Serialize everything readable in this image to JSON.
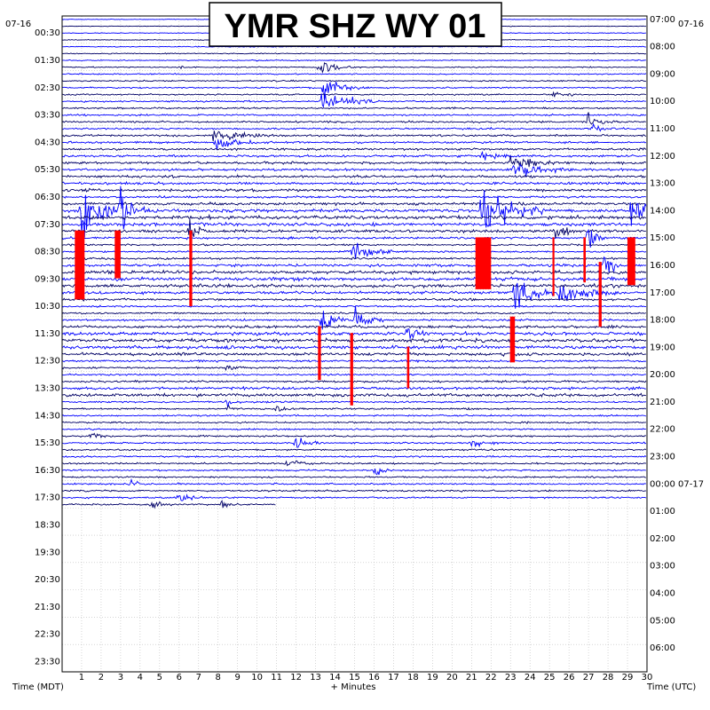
{
  "chart_data": {
    "type": "helicorder",
    "title": "YMR SHZ WY 01",
    "left_axis_label": "Time (MDT)",
    "right_axis_label": "Time (UTC)",
    "x_axis_label": "+ Minutes",
    "left_date": "07-16",
    "right_date": "07-16",
    "x_ticks": [
      "1",
      "2",
      "3",
      "4",
      "5",
      "6",
      "7",
      "8",
      "9",
      "10",
      "11",
      "12",
      "13",
      "14",
      "15",
      "16",
      "17",
      "18",
      "19",
      "20",
      "21",
      "22",
      "23",
      "24",
      "25",
      "26",
      "27",
      "28",
      "29",
      "30"
    ],
    "xlim": [
      0,
      30
    ],
    "row_minutes": 15,
    "row_count": 96,
    "rows_with_data": 72,
    "left_time_labels": [
      "00:30",
      "01:30",
      "02:30",
      "03:30",
      "04:30",
      "05:30",
      "06:30",
      "07:30",
      "08:30",
      "09:30",
      "10:30",
      "11:30",
      "12:30",
      "13:30",
      "14:30",
      "15:30",
      "16:30",
      "17:30",
      "18:30",
      "19:30",
      "20:30",
      "21:30",
      "22:30",
      "23:30"
    ],
    "right_time_labels": [
      "07:00",
      "08:00",
      "09:00",
      "10:00",
      "11:00",
      "12:00",
      "13:00",
      "14:00",
      "15:00",
      "16:00",
      "17:00",
      "18:00",
      "19:00",
      "20:00",
      "21:00",
      "22:00",
      "23:00",
      "00:00 07-17",
      "01:00",
      "02:00",
      "03:00",
      "04:00",
      "05:00",
      "06:00"
    ],
    "trace_colors": [
      "#0000ff",
      "#000066"
    ],
    "clip_color": "#ff0000",
    "grid": "dotted",
    "events": [
      {
        "row": 7,
        "minute": 13.2,
        "amp": 1.0,
        "dur": 2.0
      },
      {
        "row": 7,
        "minute": 6.0,
        "amp": 0.4,
        "dur": 0.4
      },
      {
        "row": 10,
        "minute": 13.4,
        "amp": 1.3,
        "dur": 2.5
      },
      {
        "row": 11,
        "minute": 25.2,
        "amp": 0.5,
        "dur": 1.2
      },
      {
        "row": 12,
        "minute": 13.3,
        "amp": 1.6,
        "dur": 3.0
      },
      {
        "row": 15,
        "minute": 27.0,
        "amp": 1.0,
        "dur": 1.5
      },
      {
        "row": 16,
        "minute": 27.2,
        "amp": 0.9,
        "dur": 1.2
      },
      {
        "row": 17,
        "minute": 7.8,
        "amp": 1.2,
        "dur": 3.0
      },
      {
        "row": 18,
        "minute": 7.9,
        "amp": 0.9,
        "dur": 2.5
      },
      {
        "row": 20,
        "minute": 21.5,
        "amp": 0.7,
        "dur": 2.0
      },
      {
        "row": 21,
        "minute": 23.0,
        "amp": 1.2,
        "dur": 3.0
      },
      {
        "row": 22,
        "minute": 23.2,
        "amp": 1.0,
        "dur": 3.0
      },
      {
        "row": 28,
        "minute": 1.0,
        "amp": 3.5,
        "dur": 2.5
      },
      {
        "row": 28,
        "minute": 3.0,
        "amp": 2.5,
        "dur": 1.5
      },
      {
        "row": 28,
        "minute": 21.5,
        "amp": 4.0,
        "dur": 3.5
      },
      {
        "row": 28,
        "minute": 29.2,
        "amp": 3.0,
        "dur": 2.0
      },
      {
        "row": 31,
        "minute": 6.5,
        "amp": 2.0,
        "dur": 1.0
      },
      {
        "row": 31,
        "minute": 25.3,
        "amp": 2.0,
        "dur": 1.0
      },
      {
        "row": 32,
        "minute": 27.0,
        "amp": 2.0,
        "dur": 1.0
      },
      {
        "row": 34,
        "minute": 14.8,
        "amp": 2.0,
        "dur": 2.5
      },
      {
        "row": 36,
        "minute": 27.8,
        "amp": 2.0,
        "dur": 1.0
      },
      {
        "row": 40,
        "minute": 23.2,
        "amp": 3.0,
        "dur": 2.0
      },
      {
        "row": 40,
        "minute": 25.5,
        "amp": 1.8,
        "dur": 3.0
      },
      {
        "row": 44,
        "minute": 13.3,
        "amp": 2.0,
        "dur": 1.5
      },
      {
        "row": 44,
        "minute": 15.0,
        "amp": 2.0,
        "dur": 1.5
      },
      {
        "row": 46,
        "minute": 17.7,
        "amp": 2.0,
        "dur": 1.2
      },
      {
        "row": 51,
        "minute": 8.5,
        "amp": 0.6,
        "dur": 1.0
      },
      {
        "row": 56,
        "minute": 8.5,
        "amp": 0.6,
        "dur": 1.0
      },
      {
        "row": 57,
        "minute": 8.5,
        "amp": 0.5,
        "dur": 1.0
      },
      {
        "row": 57,
        "minute": 11.0,
        "amp": 0.6,
        "dur": 1.0
      },
      {
        "row": 61,
        "minute": 1.5,
        "amp": 0.6,
        "dur": 1.0
      },
      {
        "row": 62,
        "minute": 12.0,
        "amp": 0.8,
        "dur": 1.5
      },
      {
        "row": 62,
        "minute": 21.0,
        "amp": 0.6,
        "dur": 1.5
      },
      {
        "row": 65,
        "minute": 11.5,
        "amp": 0.5,
        "dur": 2.0
      },
      {
        "row": 66,
        "minute": 16.0,
        "amp": 0.8,
        "dur": 1.0
      },
      {
        "row": 68,
        "minute": 3.5,
        "amp": 0.6,
        "dur": 1.0
      },
      {
        "row": 70,
        "minute": 6.0,
        "amp": 0.6,
        "dur": 1.5
      },
      {
        "row": 71,
        "minute": 4.5,
        "amp": 0.6,
        "dur": 1.5
      },
      {
        "row": 71,
        "minute": 8.2,
        "amp": 0.7,
        "dur": 1.0
      }
    ],
    "clips": [
      {
        "minute": 0.9,
        "top_row": 31.4,
        "bottom_row": 41.5,
        "width": 0.5
      },
      {
        "minute": 2.85,
        "top_row": 31.4,
        "bottom_row": 38.4,
        "width": 0.3
      },
      {
        "minute": 6.6,
        "top_row": 31.4,
        "bottom_row": 42.5,
        "width": 0.15
      },
      {
        "minute": 13.2,
        "top_row": 45.4,
        "bottom_row": 53.3,
        "width": 0.15
      },
      {
        "minute": 14.85,
        "top_row": 46.4,
        "bottom_row": 57.0,
        "width": 0.15
      },
      {
        "minute": 17.75,
        "top_row": 48.4,
        "bottom_row": 54.5,
        "width": 0.12
      },
      {
        "minute": 21.6,
        "top_row": 32.4,
        "bottom_row": 40.0,
        "width": 0.8
      },
      {
        "minute": 23.1,
        "top_row": 44.0,
        "bottom_row": 50.7,
        "width": 0.25
      },
      {
        "minute": 25.2,
        "top_row": 32.4,
        "bottom_row": 41.0,
        "width": 0.1
      },
      {
        "minute": 26.8,
        "top_row": 32.4,
        "bottom_row": 39.0,
        "width": 0.12
      },
      {
        "minute": 27.6,
        "top_row": 36.0,
        "bottom_row": 45.5,
        "width": 0.15
      },
      {
        "minute": 29.2,
        "top_row": 32.4,
        "bottom_row": 39.4,
        "width": 0.4
      }
    ]
  }
}
